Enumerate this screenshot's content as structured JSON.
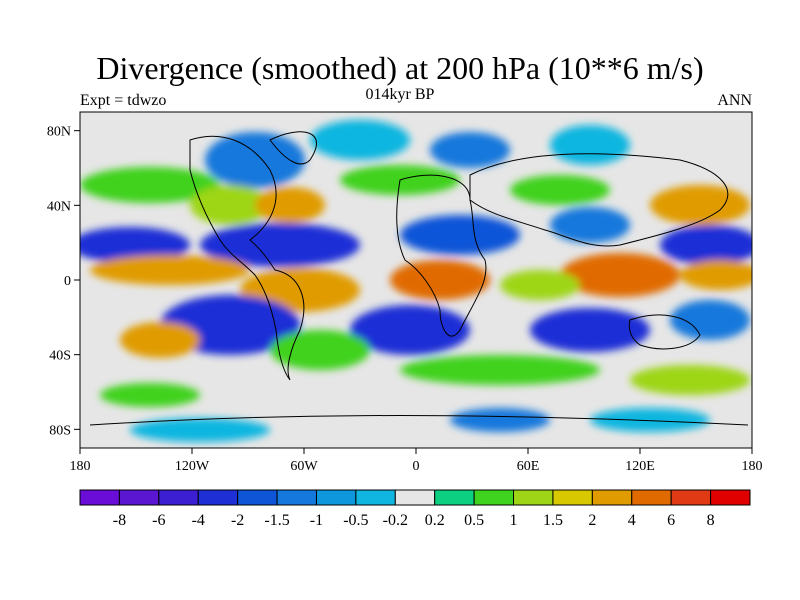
{
  "header": {
    "title": "Divergence (smoothed) at 200 hPa (10**6 m/s)",
    "experiment": "Expt = tdwzo",
    "time": "014kyr BP",
    "season": "ANN"
  },
  "map": {
    "projection": "cylindrical-equidistant",
    "lat_ticks": [
      "80N",
      "40N",
      "0",
      "40S",
      "80S"
    ],
    "lon_ticks": [
      "180",
      "120W",
      "60W",
      "0",
      "60E",
      "120E",
      "180"
    ],
    "lat_range": [
      -90,
      90
    ],
    "lon_range": [
      -180,
      180
    ]
  },
  "colorbar": {
    "labels": [
      "-8",
      "-6",
      "-4",
      "-2",
      "-1.5",
      "-1",
      "-0.5",
      "-0.2",
      "0.2",
      "0.5",
      "1",
      "1.5",
      "2",
      "4",
      "6",
      "8"
    ],
    "colors": [
      "#6a0dd6",
      "#5a16d0",
      "#3b1fd0",
      "#1f2fd6",
      "#0e55d8",
      "#1478dc",
      "#0e97dc",
      "#10b6e0",
      "#e6e6e6",
      "#0ccf82",
      "#3fd21e",
      "#9ed617",
      "#d7c800",
      "#e09b00",
      "#e06a00",
      "#e03a14",
      "#e00000"
    ]
  },
  "chart_data": {
    "type": "heatmap",
    "title": "Divergence (smoothed) at 200 hPa (10**6 m/s)",
    "levels": [
      -8,
      -6,
      -4,
      -2,
      -1.5,
      -1,
      -0.5,
      -0.2,
      0.2,
      0.5,
      1,
      1.5,
      2,
      4,
      6,
      8
    ],
    "xlim": [
      -180,
      180
    ],
    "ylim": [
      -90,
      90
    ]
  }
}
